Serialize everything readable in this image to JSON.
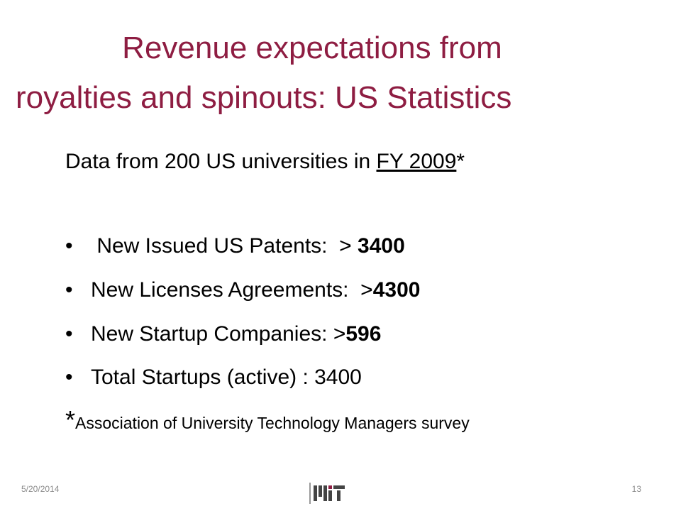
{
  "title": {
    "lines": [
      "Revenue expectations from",
      "royalties and spinouts: US Statistics"
    ]
  },
  "intro": {
    "text": "Data from 200 US universities in ",
    "underlined": "FY 2009",
    "suffix": "*"
  },
  "bullets": [
    {
      "text": " New Issued US Patents:  > ",
      "bold": "3400"
    },
    {
      "text": "New Licenses Agreements:  >",
      "bold": "4300"
    },
    {
      "text": "New Startup Companies: >",
      "bold": "596"
    },
    {
      "text": "Total Startups (active) : 3400"
    }
  ],
  "footnote": {
    "mark": "*",
    "text": "Association of University Technology Managers survey"
  },
  "footer": {
    "date": "5/20/2014",
    "page": "13"
  }
}
